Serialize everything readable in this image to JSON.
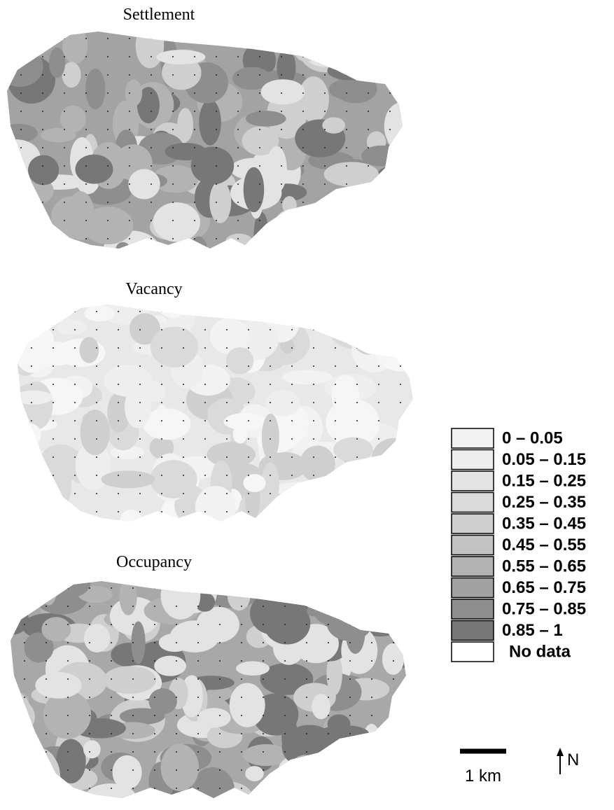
{
  "maps": [
    {
      "title": "Settlement"
    },
    {
      "title": "Vacancy"
    },
    {
      "title": "Occupancy"
    }
  ],
  "legend": {
    "items": [
      {
        "label": "0 – 0.05",
        "color": "#f2f2f2"
      },
      {
        "label": "0.05 – 0.15",
        "color": "#eeeeee"
      },
      {
        "label": "0.15 – 0.25",
        "color": "#e3e3e3"
      },
      {
        "label": "0.25 – 0.35",
        "color": "#dadada"
      },
      {
        "label": "0.35 – 0.45",
        "color": "#cfcfcf"
      },
      {
        "label": "0.45 – 0.55",
        "color": "#c2c2c2"
      },
      {
        "label": "0.55 – 0.65",
        "color": "#b3b3b3"
      },
      {
        "label": "0.65 – 0.75",
        "color": "#a2a2a2"
      },
      {
        "label": "0.75 – 0.85",
        "color": "#8e8e8e"
      },
      {
        "label": "0.85 – 1",
        "color": "#777777"
      },
      {
        "label": "No data",
        "color": "#ffffff"
      }
    ]
  },
  "scale_bar": {
    "label": "1 km"
  },
  "north_arrow": {
    "label": "N"
  }
}
